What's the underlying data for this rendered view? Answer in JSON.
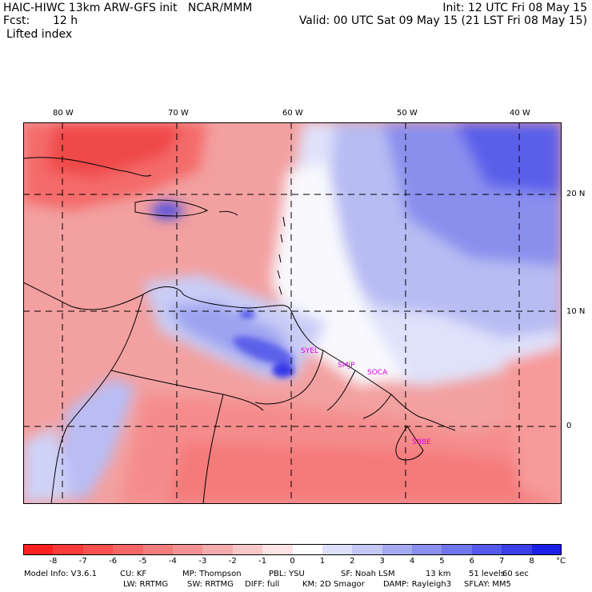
{
  "header": {
    "title_left": "HAIC-HIWC 13km ARW-GFS init   NCAR/MMM",
    "init": "Init: 12 UTC Fri 08 May 15",
    "fcst_label": "Fcst:",
    "fcst_value": "12 h",
    "valid": "Valid: 00 UTC Sat 09 May 15 (21 LST Fri 08 May 15)",
    "field": "Lifted index"
  },
  "map": {
    "lon_labels": [
      "80 W",
      "70 W",
      "60 W",
      "50 W",
      "40 W"
    ],
    "lat_labels": [
      "20 N",
      "10 N",
      "0"
    ],
    "stations": [
      "SYEL",
      "SMJP",
      "SOCA",
      "SBBE"
    ]
  },
  "colorbar": {
    "ticks": [
      "-8",
      "-7",
      "-6",
      "-5",
      "-4",
      "-3",
      "-2",
      "-1",
      "0",
      "1",
      "2",
      "3",
      "4",
      "5",
      "6",
      "7",
      "8"
    ],
    "unit": "°C",
    "colors": [
      "#ff2020",
      "#ff3a3a",
      "#f95050",
      "#f56666",
      "#f37c7c",
      "#f29292",
      "#f4abab",
      "#f8c8c8",
      "#fbe3e3",
      "#fdfdfd",
      "#dde0f9",
      "#c4c8f5",
      "#a6abf1",
      "#8b8fee",
      "#7076ec",
      "#5459ea",
      "#3a3fe8",
      "#1a20e6"
    ]
  },
  "model_info": {
    "line1": [
      "Model Info: V3.6.1",
      "CU: KF",
      "MP: Thompson",
      "PBL: YSU",
      "SF: Noah LSM",
      "13 km",
      "51 levels",
      "60 sec"
    ],
    "line2": [
      "LW: RRTMG",
      "SW: RRTMG",
      "DIFF: full",
      "KM: 2D Smagor",
      "DAMP: Rayleigh3",
      "SFLAY: MM5"
    ]
  }
}
